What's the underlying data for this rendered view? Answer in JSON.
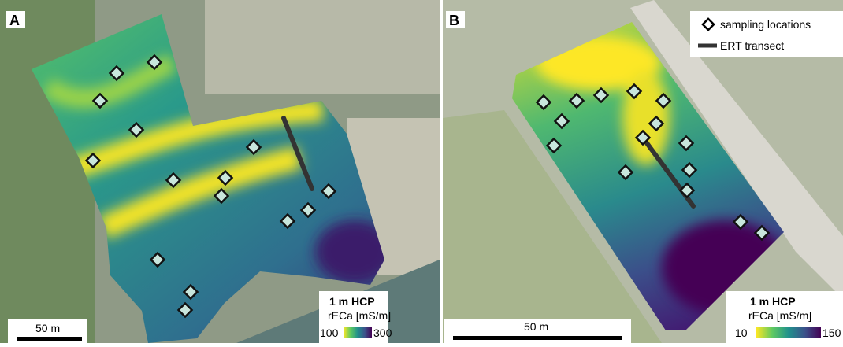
{
  "panels": [
    {
      "label": "A",
      "colorbar": {
        "title": "1 m HCP",
        "unit": "rECa [mS/m]",
        "min": 100,
        "max": 300
      },
      "scale_bar": "50 m"
    },
    {
      "label": "B",
      "legend": {
        "items": [
          "sampling locations",
          "ERT transect"
        ]
      },
      "colorbar": {
        "title": "1 m HCP",
        "unit": "rECa [mS/m]",
        "min": 10,
        "max": 150
      },
      "scale_bar": "50 m"
    }
  ]
}
